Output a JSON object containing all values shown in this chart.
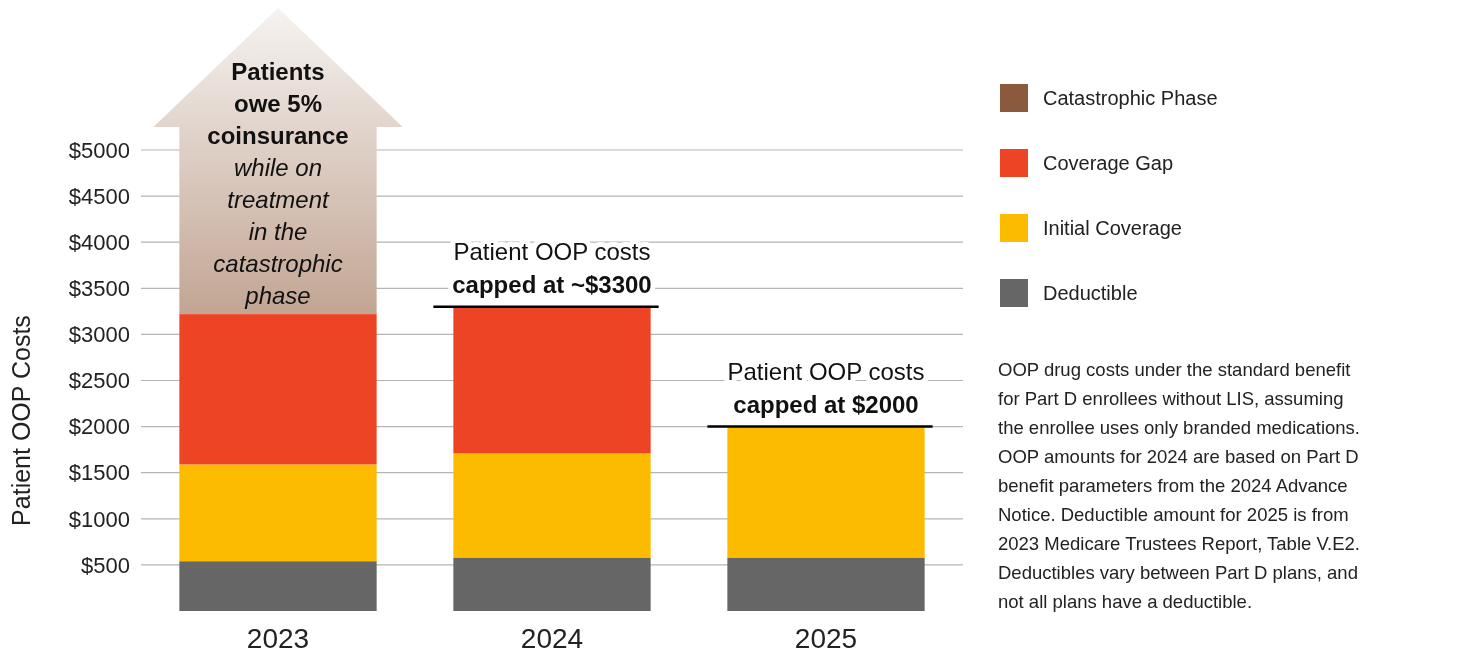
{
  "chart_data": {
    "type": "bar",
    "stacked": true,
    "ylabel": "Patient OOP Costs",
    "categories": [
      "2023",
      "2024",
      "2025"
    ],
    "series": [
      {
        "name": "Deductible",
        "color": "#666666",
        "values": [
          540,
          580,
          580
        ]
      },
      {
        "name": "Initial Coverage",
        "color": "#fdbb00",
        "values": [
          1050,
          1130,
          1420
        ]
      },
      {
        "name": "Coverage Gap",
        "color": "#ee4426",
        "values": [
          1630,
          1590,
          null
        ]
      },
      {
        "name": "Catastrophic Phase",
        "color": "#8b5a3c",
        "values": [
          null,
          null,
          null
        ]
      }
    ],
    "ylim": [
      0,
      5000
    ],
    "yticks": [
      {
        "value": 500,
        "label": "$500"
      },
      {
        "value": 1000,
        "label": "$1000"
      },
      {
        "value": 1500,
        "label": "$1500"
      },
      {
        "value": 2000,
        "label": "$2000"
      },
      {
        "value": 2500,
        "label": "$2500"
      },
      {
        "value": 3000,
        "label": "$3000"
      },
      {
        "value": 3500,
        "label": "$3500"
      },
      {
        "value": 4000,
        "label": "$4000"
      },
      {
        "value": 4500,
        "label": "$4500"
      },
      {
        "value": 5000,
        "label": "$5000"
      }
    ],
    "grid": "y",
    "legend": "right",
    "annotations": [
      "Patients owe 5% coinsurance\nwhile on treatment in the catastrophic phase",
      {
        "text": "Patient OOP costs\ncapped at ~$3300",
        "x": "2024",
        "y": 3300
      },
      {
        "text": "Patient OOP costs\ncapped at $2000",
        "x": "2025",
        "y": 2000
      },
      "OOP drug costs under the standard benefit for Part D enrollees without LIS, assuming the enrollee uses only branded medications. OOP amounts for 2024 are based on Part D benefit parameters from the 2024 Advance Notice. Deductible amount for 2025 is from 2023 Medicare Trustees Report, Table V.E2. Deductibles vary between Part D plans, and not all plans have a deductible."
    ]
  }
}
